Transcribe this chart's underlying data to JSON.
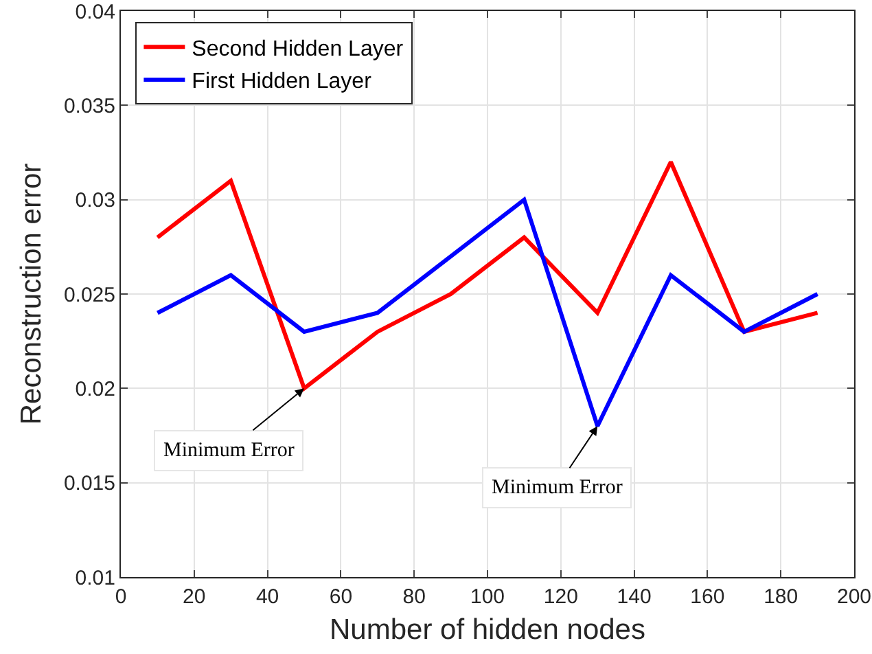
{
  "chart_data": {
    "type": "line",
    "xlabel": "Number of hidden nodes",
    "ylabel": "Reconstruction error",
    "x": [
      10,
      30,
      50,
      70,
      90,
      110,
      130,
      150,
      170,
      190
    ],
    "series": [
      {
        "name": "Second Hidden Layer",
        "color": "#ff0000",
        "values": [
          0.028,
          0.031,
          0.02,
          0.023,
          0.025,
          0.028,
          0.024,
          0.032,
          0.023,
          0.024
        ]
      },
      {
        "name": "First Hidden Layer",
        "color": "#0000ff",
        "values": [
          0.024,
          0.026,
          0.023,
          0.024,
          0.027,
          0.03,
          0.018,
          0.026,
          0.023,
          0.025
        ]
      }
    ],
    "xlim": [
      0,
      200
    ],
    "xticks": [
      0,
      20,
      40,
      60,
      80,
      100,
      120,
      140,
      160,
      180,
      200
    ],
    "ylim": [
      0.01,
      0.04
    ],
    "yticks": [
      0.01,
      0.015,
      0.02,
      0.025,
      0.03,
      0.035,
      0.04
    ],
    "grid": true,
    "legend": "top left",
    "marker": "none",
    "line_style": "solid",
    "annotations": [
      {
        "text": "Minimum Error",
        "x": 50,
        "y": 0.02
      },
      {
        "text": "Minimum Error",
        "x": 130,
        "y": 0.018
      }
    ]
  }
}
